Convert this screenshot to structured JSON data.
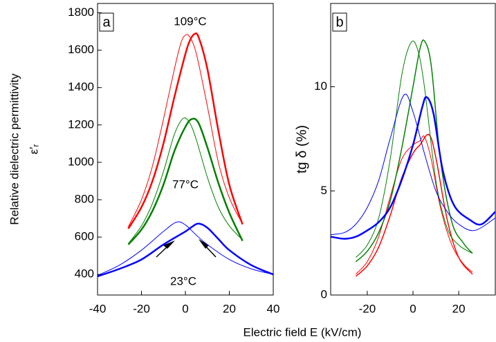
{
  "xlabel": "Electric field E (kV/cm)",
  "chart_data": [
    {
      "type": "line",
      "panel_label": "a",
      "ylabel": "Relative dielectric permittivity",
      "ylabel2": "ε′ᵣ",
      "xlim": [
        -40,
        40
      ],
      "ylim": [
        290,
        1850
      ],
      "xticks": [
        -40,
        -20,
        0,
        20,
        40
      ],
      "yticks": [
        400,
        600,
        800,
        1000,
        1200,
        1400,
        1600,
        1800
      ],
      "annotations": [
        "109°C",
        "77°C",
        "23°C"
      ],
      "series": [
        {
          "color": "#ff0000",
          "linewidth": 2.5,
          "x": [
            -26,
            -20,
            -15,
            -10,
            -5,
            0,
            2,
            4,
            6,
            10,
            15,
            20,
            26
          ],
          "values": [
            645,
            760,
            900,
            1100,
            1350,
            1580,
            1650,
            1685,
            1670,
            1500,
            1170,
            880,
            668
          ]
        },
        {
          "color": "#ff0000",
          "linewidth": 1,
          "x": [
            -26,
            -20,
            -15,
            -10,
            -5,
            -2,
            0,
            2,
            5,
            10,
            15,
            20,
            26
          ],
          "values": [
            655,
            800,
            980,
            1230,
            1500,
            1640,
            1680,
            1670,
            1580,
            1300,
            1000,
            810,
            670
          ]
        },
        {
          "color": "#008000",
          "linewidth": 2.5,
          "x": [
            -26,
            -20,
            -15,
            -10,
            -5,
            0,
            3,
            6,
            10,
            15,
            20,
            26
          ],
          "values": [
            560,
            640,
            740,
            880,
            1060,
            1190,
            1232,
            1210,
            1080,
            890,
            730,
            580
          ]
        },
        {
          "color": "#008000",
          "linewidth": 1,
          "x": [
            -26,
            -20,
            -15,
            -10,
            -5,
            -1,
            2,
            5,
            10,
            15,
            20,
            26
          ],
          "values": [
            565,
            660,
            780,
            950,
            1150,
            1235,
            1210,
            1120,
            920,
            760,
            660,
            585
          ]
        },
        {
          "color": "#0000ff",
          "linewidth": 2.5,
          "x": [
            -40,
            -30,
            -20,
            -10,
            0,
            3,
            6,
            10,
            15,
            20,
            30,
            40
          ],
          "values": [
            390,
            430,
            480,
            560,
            630,
            655,
            672,
            650,
            590,
            530,
            450,
            400
          ]
        },
        {
          "color": "#0000ff",
          "linewidth": 1,
          "x": [
            -40,
            -30,
            -20,
            -10,
            -4,
            0,
            5,
            10,
            20,
            30,
            40
          ],
          "values": [
            395,
            450,
            530,
            630,
            680,
            665,
            610,
            560,
            480,
            430,
            400
          ]
        }
      ]
    },
    {
      "type": "line",
      "panel_label": "b",
      "ylabel": "tg δ (%)",
      "xlim": [
        -36,
        36
      ],
      "ylim": [
        0,
        14
      ],
      "xticks": [
        -20,
        0,
        20
      ],
      "yticks": [
        0,
        5,
        10
      ],
      "series": [
        {
          "color": "#ff0000",
          "linewidth": 1.5,
          "x": [
            -25,
            -20,
            -15,
            -10,
            -5,
            0,
            3,
            7,
            10,
            15,
            20,
            26
          ],
          "values": [
            0.9,
            1.4,
            2.3,
            3.8,
            5.6,
            6.8,
            7.2,
            7.7,
            6.6,
            3.6,
            1.8,
            1.0
          ]
        },
        {
          "color": "#ff0000",
          "linewidth": 1,
          "x": [
            -25,
            -20,
            -15,
            -10,
            -5,
            0,
            3,
            5,
            8,
            12,
            17,
            22,
            26
          ],
          "values": [
            1.0,
            1.6,
            2.8,
            4.7,
            6.5,
            7.2,
            7.4,
            7.6,
            6.5,
            4.2,
            2.4,
            1.5,
            1.1
          ]
        },
        {
          "color": "#008000",
          "linewidth": 1.5,
          "x": [
            -25,
            -20,
            -15,
            -10,
            -5,
            0,
            3,
            5,
            8,
            12,
            17,
            22,
            26
          ],
          "values": [
            1.6,
            2.1,
            3.0,
            4.5,
            7.0,
            10.0,
            11.8,
            12.2,
            11.0,
            6.5,
            3.5,
            2.5,
            2.0
          ]
        },
        {
          "color": "#008000",
          "linewidth": 1,
          "x": [
            -25,
            -20,
            -15,
            -10,
            -5,
            -1,
            2,
            5,
            10,
            15,
            20,
            26
          ],
          "values": [
            1.8,
            2.4,
            3.7,
            6.5,
            10.5,
            12.1,
            11.8,
            10.0,
            5.5,
            3.2,
            2.4,
            2.0
          ]
        },
        {
          "color": "#0000ff",
          "linewidth": 2.5,
          "x": [
            -36,
            -30,
            -25,
            -20,
            -15,
            -10,
            -5,
            0,
            4,
            6,
            9,
            13,
            18,
            25,
            30,
            36
          ],
          "values": [
            2.8,
            2.7,
            2.8,
            3.1,
            3.5,
            4.2,
            5.5,
            7.2,
            9.0,
            9.5,
            8.7,
            6.0,
            4.3,
            3.6,
            3.4,
            4.0
          ]
        },
        {
          "color": "#0000ff",
          "linewidth": 1,
          "x": [
            -36,
            -30,
            -25,
            -20,
            -15,
            -10,
            -4,
            0,
            5,
            10,
            15,
            20,
            27,
            36
          ],
          "values": [
            2.9,
            3.0,
            3.4,
            4.2,
            5.5,
            7.5,
            9.6,
            8.8,
            6.8,
            5.0,
            4.0,
            3.4,
            3.1,
            3.7
          ]
        }
      ]
    }
  ]
}
